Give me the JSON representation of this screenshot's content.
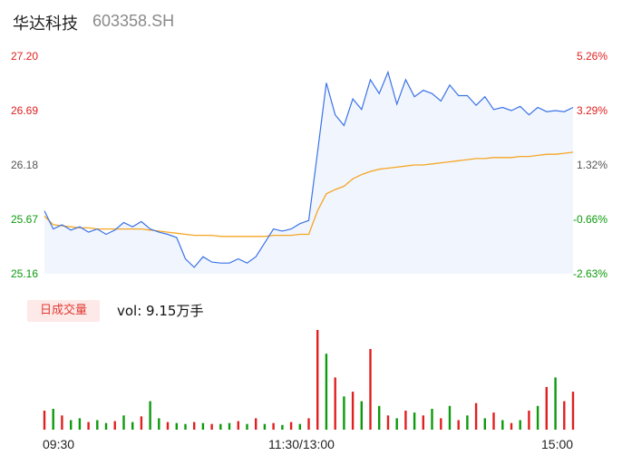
{
  "header": {
    "name": "华达科技",
    "code": "603358.SH"
  },
  "volume_panel": {
    "period_label": "日成交量",
    "volume_text": "vol: 9.15万手"
  },
  "colors": {
    "price": "#3b73e8",
    "avg": "#f5a623",
    "up": "#e02020",
    "down": "#0d9a0d",
    "area": "#e8eefc"
  },
  "chart_data": [
    {
      "type": "line",
      "title": "",
      "y_ticks": [
        "27.20",
        "26.69",
        "26.18",
        "25.67",
        "25.16"
      ],
      "y_right_ticks": [
        "5.26%",
        "3.29%",
        "1.32%",
        "-0.66%",
        "-2.63%"
      ],
      "ylim": [
        25.16,
        27.2
      ],
      "prev_close": 25.84,
      "x_ticks": [
        "09:30",
        "11:30/13:00",
        "15:00"
      ],
      "series": [
        {
          "name": "price",
          "x": [
            0,
            4,
            8,
            12,
            16,
            20,
            24,
            28,
            32,
            36,
            40,
            44,
            48,
            52,
            56,
            60,
            64,
            68,
            72,
            76,
            80,
            84,
            88,
            92,
            96,
            100,
            104,
            108,
            112,
            116,
            120,
            124,
            128,
            132,
            136,
            140,
            144,
            148,
            152,
            156,
            160,
            164,
            168,
            172,
            176,
            180,
            184,
            188,
            192,
            196,
            200,
            204,
            208,
            212,
            216,
            220,
            224,
            228,
            232,
            236,
            240
          ],
          "values": [
            25.75,
            25.58,
            25.62,
            25.57,
            25.6,
            25.55,
            25.58,
            25.53,
            25.57,
            25.64,
            25.6,
            25.65,
            25.58,
            25.55,
            25.53,
            25.5,
            25.3,
            25.22,
            25.32,
            25.27,
            25.26,
            25.26,
            25.3,
            25.26,
            25.32,
            25.45,
            25.58,
            25.56,
            25.58,
            25.63,
            25.66,
            26.3,
            26.95,
            26.65,
            26.55,
            26.8,
            26.7,
            26.98,
            26.85,
            27.05,
            26.75,
            26.98,
            26.82,
            26.88,
            26.85,
            26.78,
            26.93,
            26.83,
            26.83,
            26.74,
            26.82,
            26.7,
            26.72,
            26.69,
            26.73,
            26.65,
            26.72,
            26.68,
            26.69,
            26.68,
            26.72
          ]
        },
        {
          "name": "average",
          "x": [
            0,
            4,
            8,
            12,
            16,
            20,
            24,
            28,
            32,
            36,
            40,
            44,
            48,
            52,
            56,
            60,
            64,
            68,
            72,
            76,
            80,
            84,
            88,
            92,
            96,
            100,
            104,
            108,
            112,
            116,
            120,
            124,
            128,
            132,
            136,
            140,
            144,
            148,
            152,
            156,
            160,
            164,
            168,
            172,
            176,
            180,
            184,
            188,
            192,
            196,
            200,
            204,
            208,
            212,
            216,
            220,
            224,
            228,
            232,
            236,
            240
          ],
          "values": [
            25.7,
            25.62,
            25.61,
            25.6,
            25.59,
            25.59,
            25.58,
            25.58,
            25.58,
            25.58,
            25.58,
            25.58,
            25.57,
            25.56,
            25.55,
            25.54,
            25.53,
            25.52,
            25.52,
            25.52,
            25.51,
            25.51,
            25.51,
            25.51,
            25.51,
            25.51,
            25.52,
            25.52,
            25.52,
            25.53,
            25.53,
            25.75,
            25.91,
            25.95,
            25.98,
            26.05,
            26.09,
            26.12,
            26.14,
            26.15,
            26.16,
            26.17,
            26.18,
            26.18,
            26.19,
            26.2,
            26.21,
            26.22,
            26.23,
            26.24,
            26.24,
            26.25,
            26.25,
            26.25,
            26.26,
            26.26,
            26.27,
            26.28,
            26.28,
            26.29,
            26.3
          ]
        }
      ]
    },
    {
      "type": "bar",
      "title": "",
      "ylabel": "",
      "x_ticks": [
        "09:30",
        "11:30/13:00",
        "15:00"
      ],
      "series": [
        {
          "name": "volume",
          "x": [
            0,
            4,
            8,
            12,
            16,
            20,
            24,
            28,
            32,
            36,
            40,
            44,
            48,
            52,
            56,
            60,
            64,
            68,
            72,
            76,
            80,
            84,
            88,
            92,
            96,
            100,
            104,
            108,
            112,
            116,
            120,
            124,
            128,
            132,
            136,
            140,
            144,
            148,
            152,
            156,
            160,
            164,
            168,
            172,
            176,
            180,
            184,
            188,
            192,
            196,
            200,
            204,
            208,
            212,
            216,
            220,
            224,
            228,
            232,
            236,
            240
          ],
          "values": [
            20,
            22,
            15,
            10,
            12,
            8,
            10,
            7,
            9,
            15,
            8,
            14,
            30,
            12,
            8,
            7,
            6,
            8,
            7,
            6,
            6,
            7,
            9,
            6,
            12,
            6,
            7,
            5,
            8,
            6,
            12,
            105,
            80,
            55,
            35,
            40,
            30,
            85,
            25,
            15,
            12,
            20,
            18,
            15,
            22,
            12,
            25,
            10,
            15,
            28,
            12,
            18,
            10,
            7,
            10,
            20,
            25,
            45,
            55,
            30,
            40
          ],
          "direction": [
            "up",
            "down",
            "up",
            "down",
            "down",
            "up",
            "down",
            "down",
            "up",
            "down",
            "down",
            "up",
            "down",
            "down",
            "up",
            "down",
            "down",
            "up",
            "down",
            "up",
            "down",
            "down",
            "up",
            "down",
            "up",
            "down",
            "up",
            "down",
            "up",
            "down",
            "up",
            "up",
            "down",
            "up",
            "down",
            "up",
            "down",
            "up",
            "down",
            "up",
            "down",
            "up",
            "down",
            "up",
            "down",
            "up",
            "down",
            "up",
            "down",
            "up",
            "down",
            "up",
            "down",
            "up",
            "down",
            "up",
            "down",
            "up",
            "down",
            "up",
            "up"
          ]
        }
      ]
    }
  ]
}
